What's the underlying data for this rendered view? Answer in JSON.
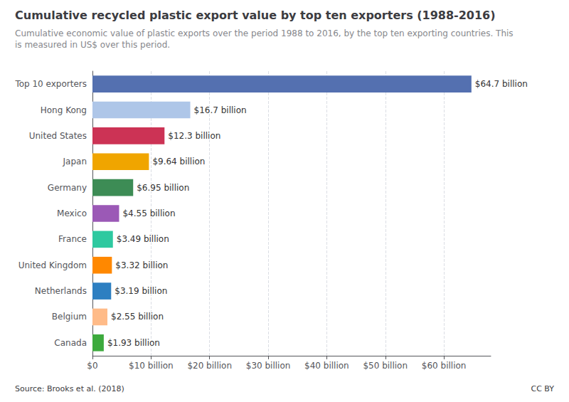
{
  "chart_data": {
    "type": "bar",
    "orientation": "horizontal",
    "title": "Cumulative recycled plastic export value by top ten exporters (1988-2016)",
    "subtitle": "Cumulative economic value of plastic exports over the period 1988 to 2016, by the top ten exporting countries. This\nis measured in US$ over this period.",
    "annotations": [
      "Source: Brooks et al. (2018)",
      "CC BY"
    ],
    "categories": [
      "Canada",
      "Belgium",
      "Netherlands",
      "United Kingdom",
      "France",
      "Mexico",
      "Germany",
      "Japan",
      "United States",
      "Hong Kong",
      "Top 10 exporters"
    ],
    "values": [
      1.93,
      2.55,
      3.19,
      3.32,
      3.49,
      4.55,
      6.95,
      9.64,
      12.3,
      16.7,
      64.7
    ],
    "value_labels": [
      "$1.93 billion",
      "$2.55 billion",
      "$3.19 billion",
      "$3.32 billion",
      "$3.49 billion",
      "$4.55 billion",
      "$6.95 billion",
      "$9.64 billion",
      "$12.3 billion",
      "$16.7 billion",
      "$64.7 billion"
    ],
    "colors": [
      "#3daa3d",
      "#ffbb88",
      "#2d7fc1",
      "#ff8800",
      "#2ec9a0",
      "#9b59b6",
      "#3d8c55",
      "#f0a500",
      "#cc3355",
      "#aec6e8",
      "#5470b0"
    ],
    "xlim": [
      0,
      68
    ],
    "xticks": [
      {
        "value": 0,
        "label": "$0"
      },
      {
        "value": 10,
        "label": "$10 billion"
      },
      {
        "value": 20,
        "label": "$20 billion"
      },
      {
        "value": 30,
        "label": "$30 billion"
      },
      {
        "value": 40,
        "label": "$40 billion"
      },
      {
        "value": 50,
        "label": "$50 billion"
      },
      {
        "value": 60,
        "label": "$60 billion"
      }
    ],
    "grid": true,
    "data_labels": true
  }
}
